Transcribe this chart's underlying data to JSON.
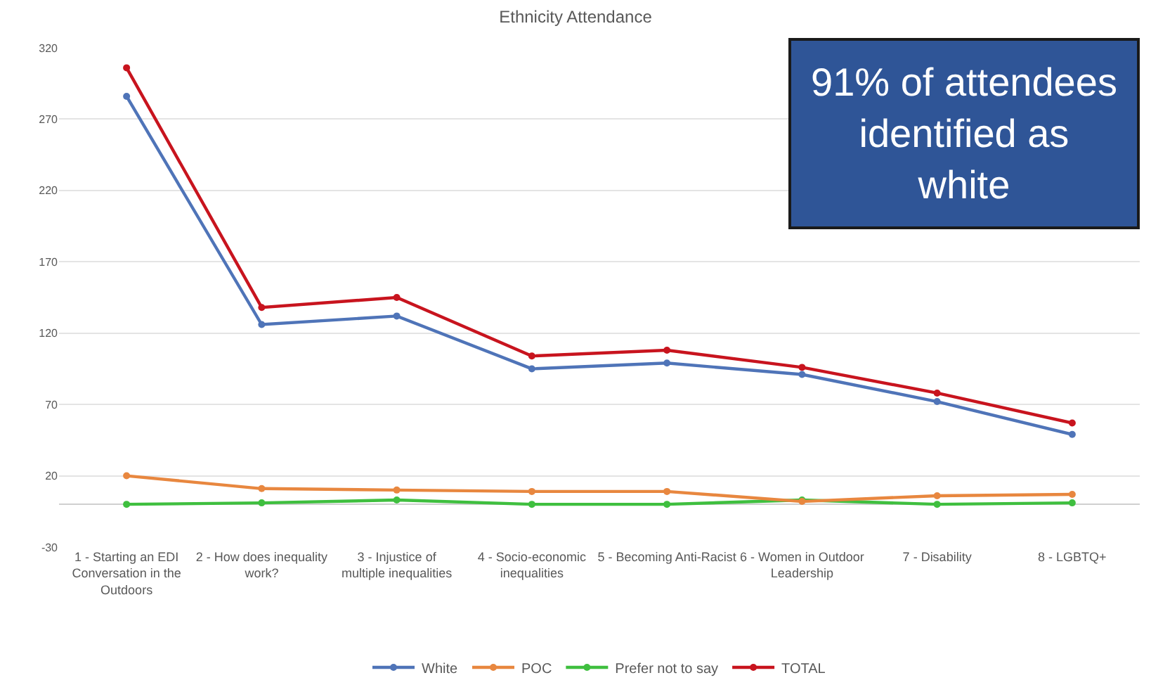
{
  "chart_data": {
    "type": "line",
    "title": "Ethnicity Attendance",
    "categories": [
      "1 - Starting an EDI Conversation in the Outdoors",
      "2 - How does inequality work?",
      "3 - Injustice of multiple inequalities",
      "4 - Socio-economic inequalities",
      "5 - Becoming Anti-Racist",
      "6 - Women in Outdoor Leadership",
      "7 - Disability",
      "8 - LGBTQ+"
    ],
    "series": [
      {
        "name": "White",
        "color": "#4f74b8",
        "values": [
          286,
          126,
          132,
          95,
          99,
          91,
          72,
          49
        ]
      },
      {
        "name": "POC",
        "color": "#e8873f",
        "values": [
          20,
          11,
          10,
          9,
          9,
          2,
          6,
          7
        ]
      },
      {
        "name": "Prefer not to say",
        "color": "#3fbf3f",
        "values": [
          0,
          1,
          3,
          0,
          0,
          3,
          0,
          1
        ]
      },
      {
        "name": "TOTAL",
        "color": "#c8141e",
        "values": [
          306,
          138,
          145,
          104,
          108,
          96,
          78,
          57
        ]
      }
    ],
    "ylim": [
      -30,
      320
    ],
    "yticks": [
      -30,
      20,
      70,
      120,
      170,
      220,
      270,
      320
    ],
    "grid": "y",
    "legend": "bottom",
    "marker": "circle",
    "line_style": "solid",
    "annotations": [
      "91% of attendees identified as white"
    ]
  }
}
